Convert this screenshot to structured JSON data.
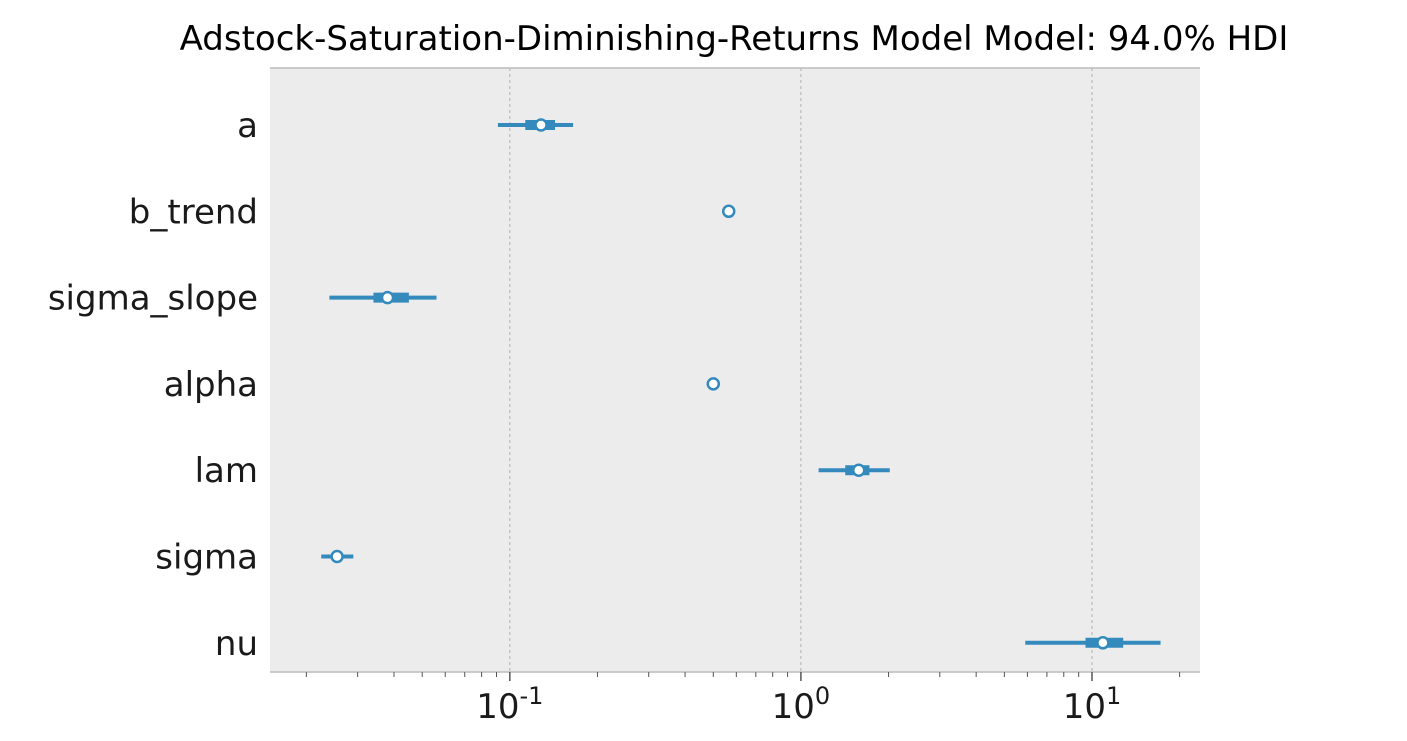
{
  "chart_data": {
    "type": "forest",
    "title": "Adstock-Saturation-Diminishing-Returns Model Model: 94.0% HDI",
    "x_scale": "log",
    "xlim": [
      0.015,
      23.5
    ],
    "x_ticks": [
      {
        "value": 0.1,
        "base": "10",
        "exp": "-1"
      },
      {
        "value": 1,
        "base": "10",
        "exp": "0"
      },
      {
        "value": 10,
        "base": "10",
        "exp": "1"
      }
    ],
    "grid": "vertical dashed at major ticks",
    "colors": {
      "series": "#348abd",
      "plot_background": "#ececec",
      "grid": "#b0b0b0",
      "spine": "#bcbcbc",
      "marker_face": "#ffffff"
    },
    "parameters": [
      {
        "name": "a",
        "median": 0.128,
        "iqr": [
          0.113,
          0.143
        ],
        "hdi": [
          0.091,
          0.165
        ]
      },
      {
        "name": "b_trend",
        "median": 0.565,
        "iqr": [
          0.557,
          0.573
        ],
        "hdi": [
          0.545,
          0.585
        ]
      },
      {
        "name": "sigma_slope",
        "median": 0.038,
        "iqr": [
          0.034,
          0.045
        ],
        "hdi": [
          0.024,
          0.056
        ]
      },
      {
        "name": "alpha",
        "median": 0.5,
        "iqr": [
          0.49,
          0.51
        ],
        "hdi": [
          0.475,
          0.525
        ]
      },
      {
        "name": "lam",
        "median": 1.58,
        "iqr": [
          1.42,
          1.72
        ],
        "hdi": [
          1.15,
          2.02
        ]
      },
      {
        "name": "sigma",
        "median": 0.0255,
        "iqr": [
          0.0247,
          0.0265
        ],
        "hdi": [
          0.0225,
          0.029
        ]
      },
      {
        "name": "nu",
        "median": 10.9,
        "iqr": [
          9.5,
          12.8
        ],
        "hdi": [
          5.9,
          17.2
        ]
      }
    ]
  }
}
